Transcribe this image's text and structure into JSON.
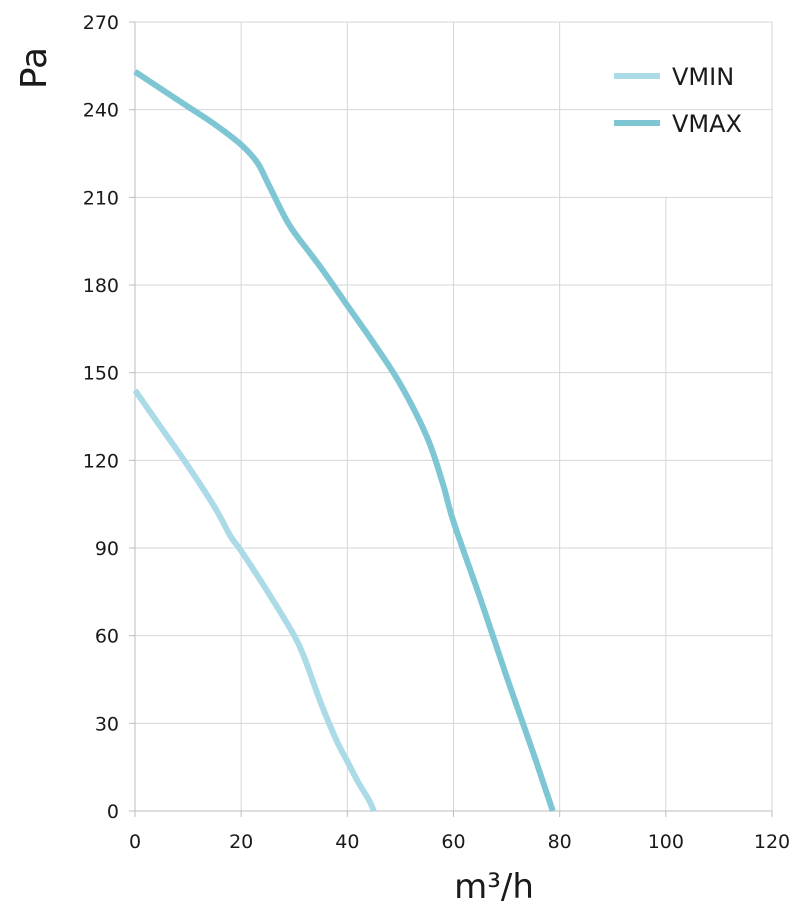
{
  "chart_data": {
    "type": "line",
    "title": "",
    "xlabel": "m³/h",
    "ylabel": "Pa",
    "xlim": [
      0,
      120
    ],
    "ylim": [
      0,
      270
    ],
    "xticks": [
      0,
      20,
      40,
      60,
      80,
      100,
      120
    ],
    "yticks": [
      0,
      30,
      60,
      90,
      120,
      150,
      180,
      210,
      240,
      270
    ],
    "grid": true,
    "legend_position": "top-right",
    "series": [
      {
        "name": "VMIN",
        "color": "#acdbe8",
        "x": [
          0,
          5,
          10,
          15,
          18,
          20,
          25,
          30,
          32,
          35,
          38,
          40,
          42,
          44,
          45
        ],
        "y": [
          144,
          131,
          118,
          104,
          94,
          89,
          75,
          60,
          52,
          37,
          24,
          17,
          10,
          4,
          0
        ]
      },
      {
        "name": "VMAX",
        "color": "#7ec6d4",
        "x": [
          0,
          5,
          10,
          15,
          20,
          23,
          25,
          28,
          30,
          35,
          40,
          45,
          50,
          55,
          58,
          60,
          65,
          70,
          75,
          78.7
        ],
        "y": [
          253,
          247,
          241,
          235,
          228,
          222,
          215,
          204,
          198,
          186,
          173,
          160,
          146,
          128,
          112,
          99,
          73,
          46,
          20,
          0
        ]
      }
    ]
  }
}
